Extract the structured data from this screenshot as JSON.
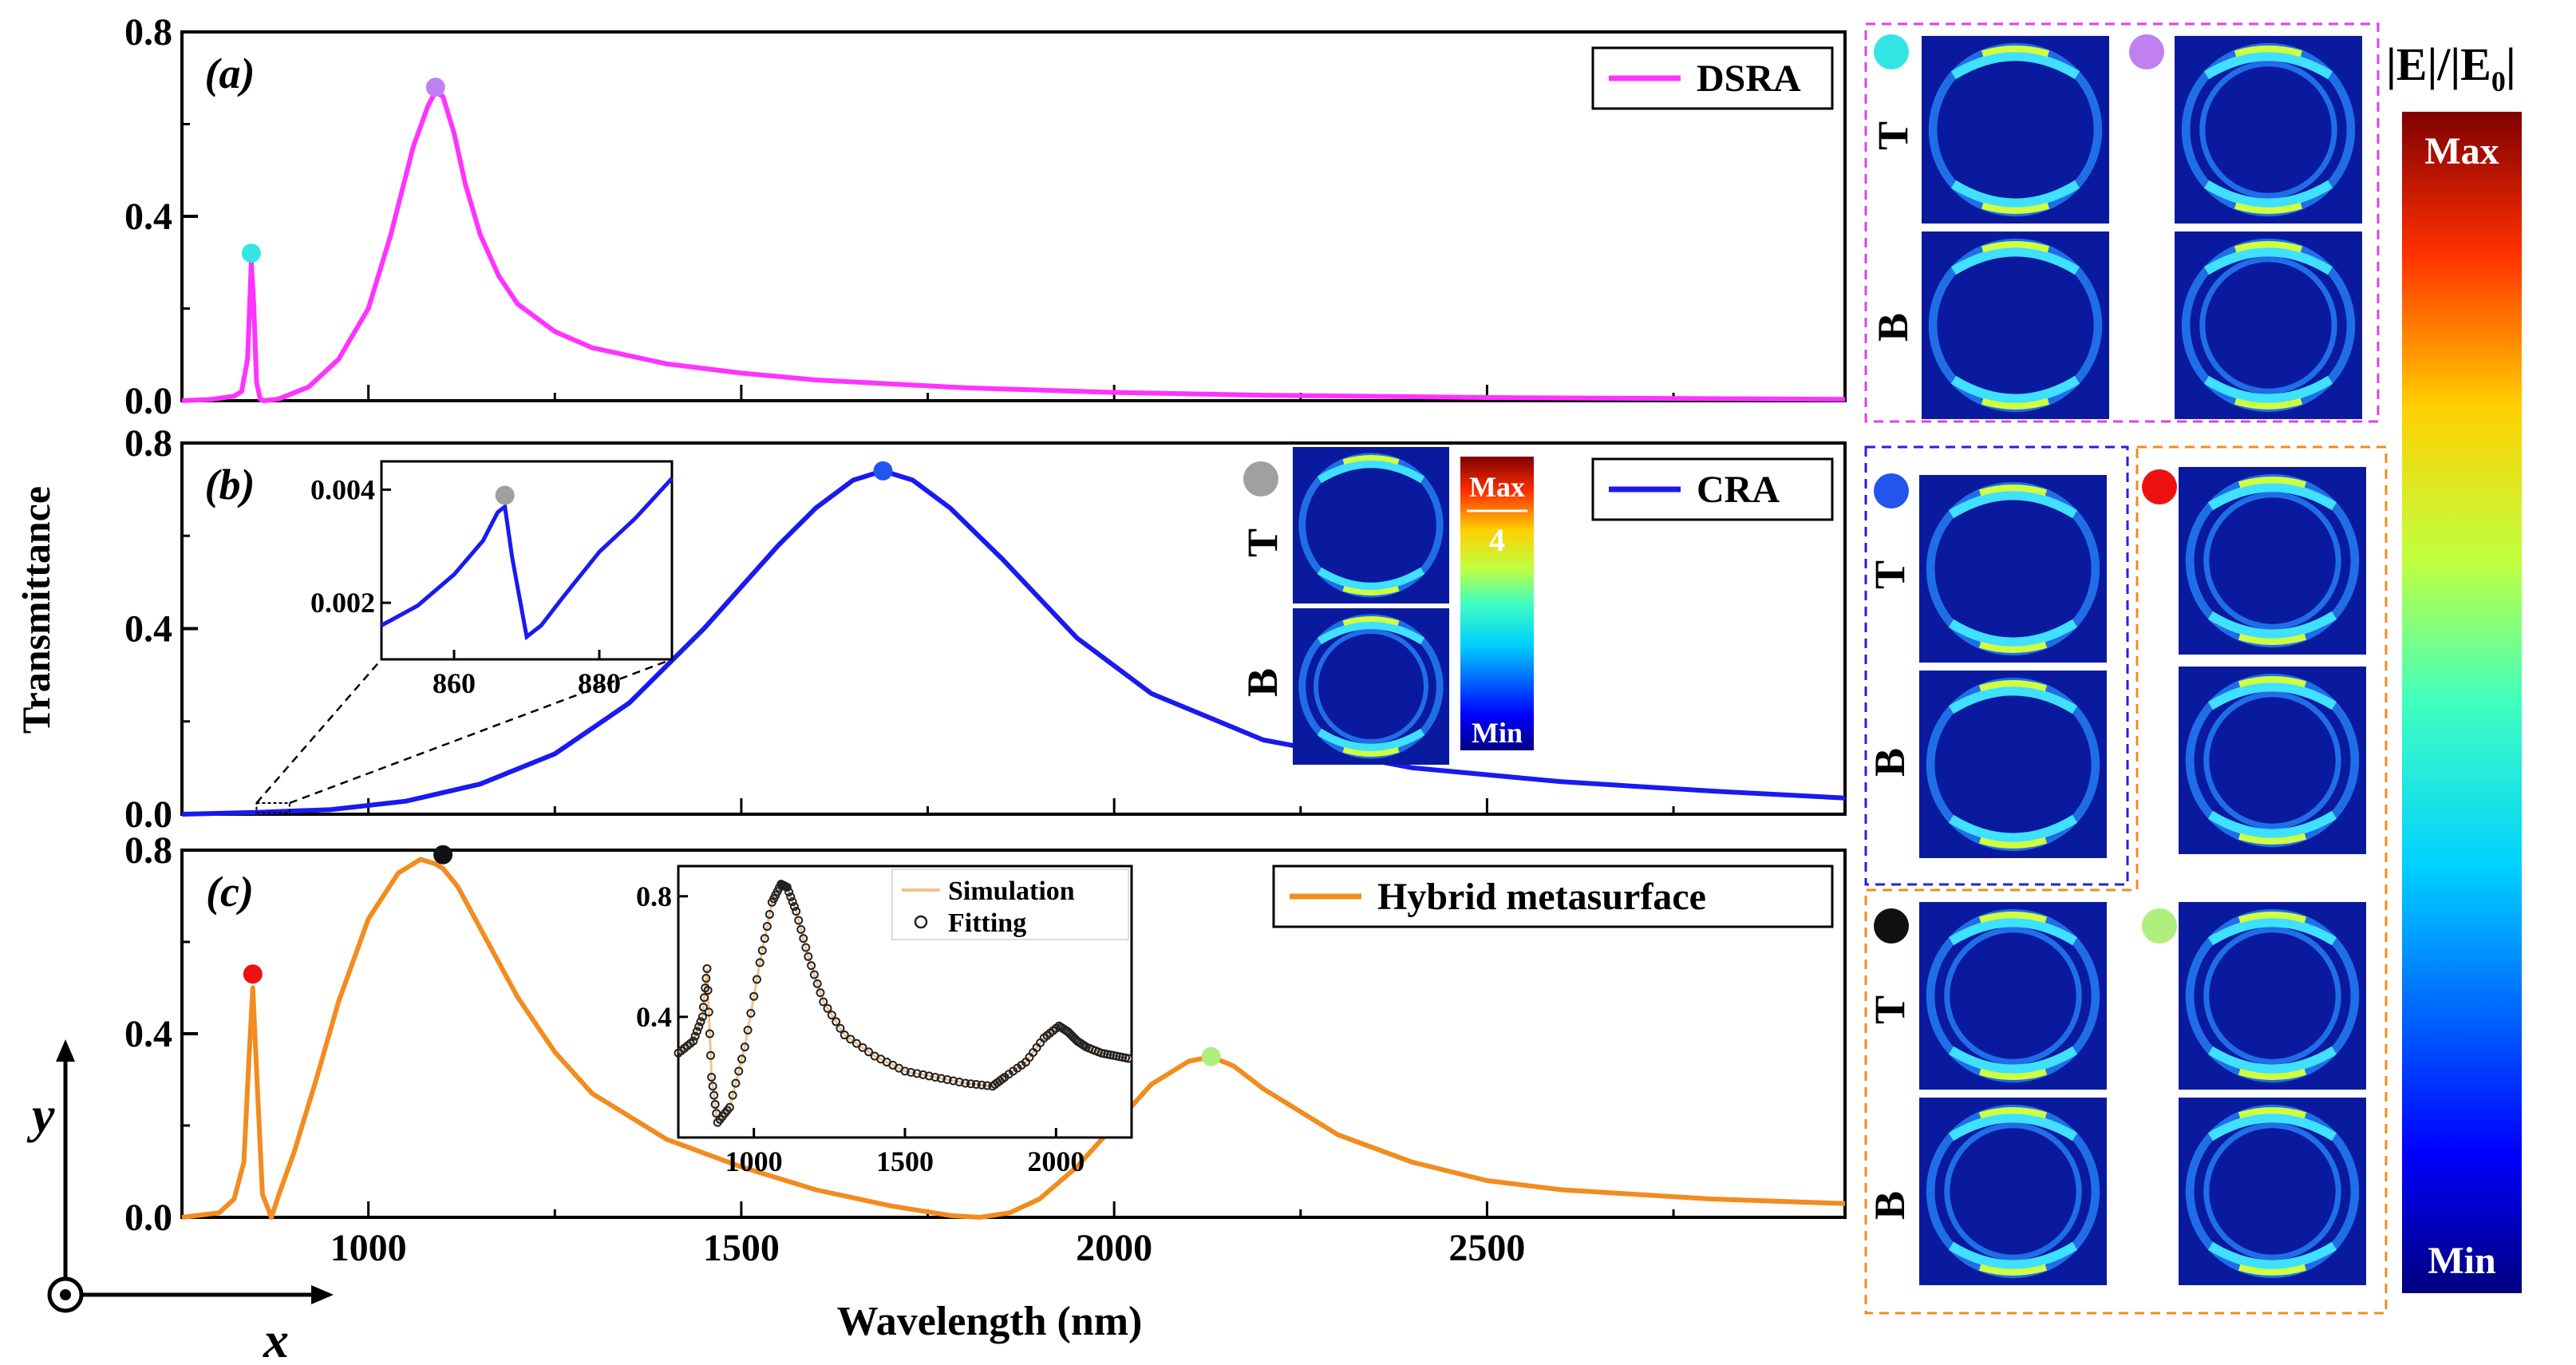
{
  "figure": {
    "ylabel": "Transmittance",
    "xlabel": "Wavelength (nm)",
    "colorbar_title_main": "|E|/|E",
    "colorbar_title_sub": "0",
    "colorbar_title_end": "|",
    "colorbar_max": "Max",
    "colorbar_min": "Min",
    "axis_y_label": "y",
    "axis_x_label": "x",
    "map_row_top": "T",
    "map_row_bottom": "B",
    "small_colorbar_max": "Max",
    "small_colorbar_value": "4",
    "small_colorbar_min": "Min"
  },
  "chart_data": [
    {
      "type": "line",
      "panel": "(a)",
      "legend": "DSRA",
      "color": "#ff33ff",
      "xlim": [
        750,
        2980
      ],
      "ylim": [
        0,
        0.8
      ],
      "yticks": [
        "0.0",
        "0.4",
        "0.8"
      ],
      "xticks": [],
      "x": [
        750,
        790,
        820,
        830,
        838,
        843,
        846,
        850,
        855,
        860,
        880,
        920,
        960,
        1000,
        1030,
        1060,
        1080,
        1090,
        1100,
        1115,
        1130,
        1150,
        1175,
        1200,
        1250,
        1300,
        1400,
        1500,
        1600,
        1800,
        2000,
        2200,
        2500,
        2980
      ],
      "y": [
        0.0,
        0.003,
        0.01,
        0.02,
        0.09,
        0.3,
        0.22,
        0.04,
        0.003,
        0.0,
        0.004,
        0.03,
        0.09,
        0.2,
        0.36,
        0.55,
        0.64,
        0.67,
        0.66,
        0.58,
        0.47,
        0.36,
        0.27,
        0.21,
        0.15,
        0.115,
        0.08,
        0.06,
        0.045,
        0.028,
        0.018,
        0.012,
        0.007,
        0.003
      ],
      "markers": [
        {
          "x": 843,
          "y": 0.32,
          "color": "#33e5e5"
        },
        {
          "x": 1090,
          "y": 0.68,
          "color": "#c080f0"
        }
      ]
    },
    {
      "type": "line",
      "panel": "(b)",
      "legend": "CRA",
      "color": "#1a1aee",
      "xlim": [
        750,
        2980
      ],
      "ylim": [
        0,
        0.8
      ],
      "yticks": [
        "0.0",
        "0.4",
        "0.8"
      ],
      "xticks": [],
      "x": [
        750,
        850,
        950,
        1050,
        1150,
        1250,
        1350,
        1450,
        1550,
        1600,
        1650,
        1690,
        1730,
        1780,
        1850,
        1950,
        2050,
        2200,
        2400,
        2600,
        2800,
        2980
      ],
      "y": [
        0.0,
        0.004,
        0.01,
        0.028,
        0.065,
        0.13,
        0.24,
        0.4,
        0.58,
        0.66,
        0.72,
        0.74,
        0.72,
        0.66,
        0.55,
        0.38,
        0.26,
        0.16,
        0.1,
        0.07,
        0.05,
        0.035
      ],
      "markers": [
        {
          "x": 1690,
          "y": 0.74,
          "color": "#2255ee"
        }
      ],
      "inset": {
        "xlim": [
          850,
          890
        ],
        "ylim": [
          0.001,
          0.0045
        ],
        "yticks": [
          "0.002",
          "0.004"
        ],
        "xticks": [
          "860",
          "880"
        ],
        "x": [
          850,
          855,
          860,
          864,
          866,
          867,
          868,
          870,
          872,
          875,
          880,
          885,
          890
        ],
        "y": [
          0.0016,
          0.00195,
          0.0025,
          0.0031,
          0.0036,
          0.0037,
          0.0028,
          0.0014,
          0.0016,
          0.0021,
          0.0029,
          0.0035,
          0.0042
        ],
        "marker": {
          "x": 867,
          "y": 0.0039,
          "color": "#a0a0a0"
        }
      }
    },
    {
      "type": "line",
      "panel": "(c)",
      "legend": "Hybrid metasurface",
      "color": "#f28c1e",
      "xlim": [
        750,
        2980
      ],
      "ylim": [
        0,
        0.8
      ],
      "yticks": [
        "0.0",
        "0.4",
        "0.8"
      ],
      "xticks": [
        "1000",
        "1500",
        "2000",
        "2500"
      ],
      "x": [
        750,
        800,
        820,
        833,
        840,
        845,
        850,
        858,
        870,
        880,
        900,
        930,
        960,
        1000,
        1040,
        1070,
        1090,
        1100,
        1120,
        1150,
        1200,
        1250,
        1300,
        1400,
        1500,
        1600,
        1700,
        1780,
        1820,
        1860,
        1900,
        1950,
        2000,
        2050,
        2100,
        2130,
        2160,
        2200,
        2300,
        2400,
        2500,
        2600,
        2800,
        2980
      ],
      "y": [
        0.0,
        0.01,
        0.04,
        0.12,
        0.35,
        0.5,
        0.32,
        0.05,
        0.0,
        0.05,
        0.14,
        0.3,
        0.47,
        0.65,
        0.75,
        0.78,
        0.77,
        0.76,
        0.72,
        0.63,
        0.48,
        0.36,
        0.27,
        0.17,
        0.11,
        0.06,
        0.025,
        0.004,
        0.0,
        0.01,
        0.04,
        0.11,
        0.2,
        0.29,
        0.34,
        0.35,
        0.33,
        0.28,
        0.18,
        0.12,
        0.08,
        0.06,
        0.04,
        0.03
      ],
      "markers": [
        {
          "x": 845,
          "y": 0.53,
          "color": "#ee1111"
        },
        {
          "x": 1100,
          "y": 0.79,
          "color": "#111111"
        },
        {
          "x": 2130,
          "y": 0.35,
          "color": "#b0ee80"
        }
      ],
      "inset": {
        "legend": [
          "Simulation",
          "Fitting"
        ],
        "xlim": [
          750,
          2250
        ],
        "ylim": [
          0.0,
          0.9
        ],
        "yticks": [
          "0.4",
          "0.8"
        ],
        "xticks": [
          "1000",
          "1500",
          "2000"
        ],
        "x": [
          750,
          800,
          830,
          845,
          860,
          880,
          920,
          970,
          1020,
          1060,
          1090,
          1110,
          1140,
          1180,
          1230,
          1300,
          1400,
          1500,
          1600,
          1700,
          1790,
          1830,
          1900,
          1960,
          2010,
          2040,
          2070,
          2100,
          2150,
          2200,
          2250
        ],
        "y": [
          0.28,
          0.32,
          0.4,
          0.56,
          0.2,
          0.05,
          0.1,
          0.3,
          0.58,
          0.78,
          0.84,
          0.83,
          0.75,
          0.6,
          0.45,
          0.34,
          0.27,
          0.22,
          0.2,
          0.18,
          0.17,
          0.2,
          0.25,
          0.33,
          0.37,
          0.35,
          0.32,
          0.3,
          0.28,
          0.27,
          0.26
        ]
      }
    }
  ]
}
